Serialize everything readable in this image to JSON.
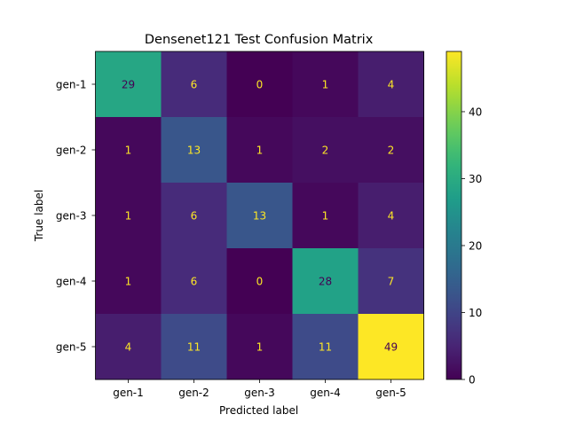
{
  "chart_data": {
    "type": "heatmap",
    "title": "Densenet121 Test Confusion Matrix",
    "xlabel": "Predicted label",
    "ylabel": "True label",
    "x_categories": [
      "gen-1",
      "gen-2",
      "gen-3",
      "gen-4",
      "gen-5"
    ],
    "y_categories": [
      "gen-1",
      "gen-2",
      "gen-3",
      "gen-4",
      "gen-5"
    ],
    "matrix": [
      [
        29,
        6,
        0,
        1,
        4
      ],
      [
        1,
        13,
        1,
        2,
        2
      ],
      [
        1,
        6,
        13,
        1,
        4
      ],
      [
        1,
        6,
        0,
        28,
        7
      ],
      [
        4,
        11,
        1,
        11,
        49
      ]
    ],
    "colormap": "viridis",
    "vmin": 0,
    "vmax": 49,
    "colorbar_ticks": [
      0,
      10,
      20,
      30,
      40
    ],
    "text_color_dark_cells": "#fde725",
    "text_color_light_cells": "#440154",
    "grid": false
  }
}
